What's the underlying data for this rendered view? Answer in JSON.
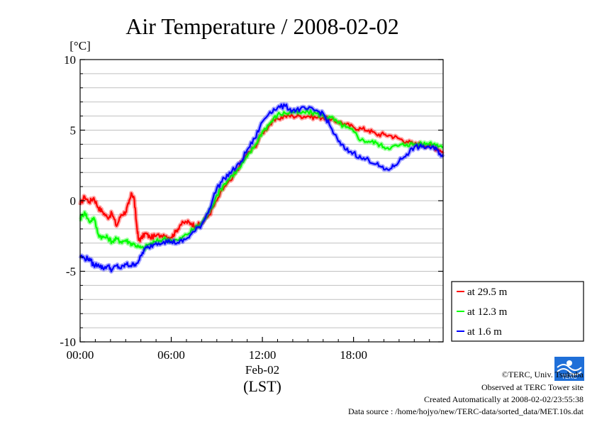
{
  "chart_data": {
    "type": "line",
    "title": "Air Temperature / 2008-02-02",
    "ylabel": "[°C]",
    "xlabel": "(LST)",
    "date_label": "Feb-02",
    "ylim": [
      -10,
      10
    ],
    "y_ticks": [
      "10",
      "5",
      "0",
      "-5",
      "-10"
    ],
    "x_ticks": [
      "00:00",
      "06:00",
      "12:00",
      "18:00"
    ],
    "xlim_hours": [
      0,
      23.9
    ],
    "grid": true,
    "legend_position": "right-bottom",
    "series": [
      {
        "name": "at 29.5 m",
        "color": "#ff0000",
        "x": [
          0,
          0.3,
          0.6,
          0.9,
          1.2,
          1.5,
          1.8,
          2.1,
          2.4,
          2.7,
          3.0,
          3.2,
          3.4,
          3.55,
          3.7,
          3.85,
          4.0,
          4.3,
          4.6,
          5.0,
          5.5,
          6.0,
          6.3,
          6.6,
          7.0,
          7.3,
          7.6,
          8.0,
          8.5,
          9.0,
          9.5,
          10.0,
          10.5,
          11.0,
          11.5,
          12.0,
          12.5,
          13.0,
          13.5,
          14.0,
          14.5,
          15.0,
          15.5,
          16.0,
          16.5,
          17.0,
          17.5,
          18.0,
          18.5,
          19.0,
          19.5,
          20.0,
          20.5,
          21.0,
          21.5,
          22.0,
          22.5,
          23.0,
          23.5,
          23.9
        ],
        "values": [
          -0.3,
          0.3,
          -0.1,
          0.2,
          -0.5,
          -0.8,
          -1.2,
          -0.9,
          -1.8,
          -1.0,
          -0.8,
          -0.2,
          0.5,
          0.2,
          -1.5,
          -2.8,
          -2.7,
          -2.3,
          -2.6,
          -2.5,
          -2.4,
          -2.6,
          -2.2,
          -1.7,
          -1.5,
          -1.6,
          -1.8,
          -1.6,
          -1.0,
          0.0,
          1.0,
          1.5,
          2.5,
          3.3,
          3.8,
          4.8,
          5.4,
          5.8,
          6.0,
          6.0,
          6.0,
          6.0,
          5.9,
          5.9,
          5.7,
          5.6,
          5.4,
          5.2,
          5.1,
          5.0,
          4.7,
          4.7,
          4.6,
          4.4,
          4.2,
          4.0,
          4.0,
          3.9,
          3.7,
          3.5
        ]
      },
      {
        "name": "at 12.3 m",
        "color": "#00ff00",
        "x": [
          0,
          0.3,
          0.6,
          0.9,
          1.2,
          1.5,
          1.8,
          2.1,
          2.4,
          2.7,
          3.0,
          3.3,
          3.6,
          3.9,
          4.2,
          4.5,
          5.0,
          5.5,
          6.0,
          6.5,
          7.0,
          7.5,
          8.0,
          8.5,
          9.0,
          9.5,
          10.0,
          10.5,
          11.0,
          11.5,
          12.0,
          12.5,
          13.0,
          13.5,
          14.0,
          14.5,
          15.0,
          15.5,
          16.0,
          16.5,
          17.0,
          17.5,
          18.0,
          18.5,
          19.0,
          19.5,
          20.0,
          20.5,
          21.0,
          21.5,
          22.0,
          22.5,
          23.0,
          23.5,
          23.9
        ],
        "values": [
          -1.3,
          -0.8,
          -1.5,
          -1.2,
          -2.4,
          -2.6,
          -2.6,
          -2.9,
          -2.7,
          -2.9,
          -2.8,
          -3.0,
          -3.1,
          -3.3,
          -3.4,
          -3.1,
          -2.9,
          -2.7,
          -2.8,
          -2.8,
          -2.4,
          -2.0,
          -1.6,
          -0.8,
          0.4,
          1.2,
          1.8,
          2.3,
          3.1,
          3.9,
          4.9,
          5.5,
          6.1,
          6.2,
          6.3,
          6.2,
          6.3,
          6.2,
          6.0,
          5.9,
          5.5,
          5.2,
          4.9,
          4.3,
          4.2,
          4.1,
          3.8,
          3.8,
          3.9,
          4.0,
          4.0,
          4.0,
          4.1,
          4.0,
          3.8
        ]
      },
      {
        "name": "at 1.6 m",
        "color": "#0000ff",
        "x": [
          0,
          0.3,
          0.6,
          0.9,
          1.2,
          1.5,
          1.8,
          2.1,
          2.4,
          2.7,
          3.0,
          3.3,
          3.6,
          3.9,
          4.2,
          4.5,
          5.0,
          5.5,
          6.0,
          6.5,
          7.0,
          7.5,
          8.0,
          8.5,
          9.0,
          9.5,
          10.0,
          10.5,
          11.0,
          11.5,
          12.0,
          12.5,
          13.0,
          13.5,
          14.0,
          14.5,
          15.0,
          15.5,
          16.0,
          16.5,
          17.0,
          17.5,
          18.0,
          18.5,
          19.0,
          19.5,
          20.0,
          20.5,
          21.0,
          21.5,
          22.0,
          22.5,
          23.0,
          23.5,
          23.9
        ],
        "values": [
          -3.9,
          -4.1,
          -4.1,
          -4.6,
          -4.5,
          -4.8,
          -4.6,
          -4.9,
          -4.6,
          -4.8,
          -4.5,
          -4.6,
          -4.5,
          -4.2,
          -3.5,
          -3.3,
          -3.0,
          -2.9,
          -2.9,
          -3.0,
          -2.7,
          -2.2,
          -1.7,
          -0.6,
          0.9,
          1.6,
          2.1,
          2.6,
          3.6,
          4.4,
          5.6,
          6.3,
          6.6,
          6.7,
          6.4,
          6.5,
          6.5,
          6.4,
          6.2,
          5.2,
          4.2,
          3.6,
          3.4,
          3.0,
          2.9,
          2.6,
          2.2,
          2.3,
          2.8,
          3.3,
          3.8,
          3.8,
          3.8,
          3.6,
          3.1
        ]
      }
    ]
  },
  "footer": {
    "copyright": "©TERC, Univ. Tsukuba",
    "observed": "Observed at TERC Tower site",
    "created": "Created Automatically at 2008-02-02/23:55:38",
    "source": "Data source : /home/hojyo/new/TERC-data/sorted_data/MET.10s.dat"
  },
  "logo_text": "TERC"
}
